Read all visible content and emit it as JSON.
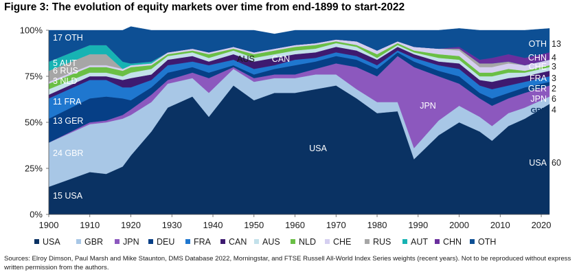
{
  "title": "Figure 3: The evolution of equity markets over time from end-1899 to start-2022",
  "source": "Sources: Elroy Dimson, Paul Marsh and Mike Staunton, DMS Database 2022, Morningstar, and FTSE Russell All-World Index Series weights (recent years). Not to be reproduced without express written permission from the authors.",
  "chart_data": {
    "type": "area",
    "stacked": true,
    "title": "Figure 3: The evolution of equity markets over time from end-1899 to start-2022",
    "xlabel": "",
    "ylabel": "",
    "xlim": [
      1900,
      2022
    ],
    "ylim": [
      0,
      100
    ],
    "x_ticks": [
      1900,
      1910,
      1920,
      1930,
      1940,
      1950,
      1960,
      1970,
      1980,
      1990,
      2000,
      2010,
      2020
    ],
    "y_ticks": [
      0,
      25,
      50,
      75,
      100
    ],
    "y_tick_labels": [
      "0%",
      "25%",
      "50%",
      "75%",
      "100%"
    ],
    "legend_position": "bottom",
    "x": [
      1900,
      1910,
      1914,
      1918,
      1920,
      1925,
      1929,
      1935,
      1939,
      1945,
      1950,
      1955,
      1960,
      1965,
      1970,
      1975,
      1980,
      1985,
      1989,
      1995,
      2000,
      2005,
      2008,
      2012,
      2016,
      2022
    ],
    "series": [
      {
        "name": "USA",
        "color": "#0a3263",
        "values": [
          15,
          23,
          22,
          26,
          32,
          45,
          58,
          64,
          53,
          70,
          62,
          66,
          66,
          68,
          70,
          63,
          55,
          56,
          30,
          43,
          50,
          45,
          40,
          48,
          52,
          60
        ]
      },
      {
        "name": "GBR",
        "color": "#a8c7e6",
        "values": [
          24,
          26,
          28,
          26,
          22,
          16,
          13,
          10,
          13,
          9,
          10,
          8,
          8,
          8,
          6,
          5,
          6,
          5,
          6,
          8,
          9,
          8,
          8,
          7,
          6,
          4
        ]
      },
      {
        "name": "JPN",
        "color": "#8c58be",
        "values": [
          0,
          1,
          1,
          2,
          3,
          4,
          2,
          3,
          8,
          1,
          2,
          2,
          2,
          3,
          6,
          12,
          14,
          25,
          44,
          24,
          12,
          10,
          11,
          8,
          8,
          6
        ]
      },
      {
        "name": "DEU",
        "color": "#063f86",
        "values": [
          13,
          13,
          13,
          9,
          5,
          4,
          4,
          3,
          3,
          1,
          2,
          3,
          5,
          4,
          4,
          4,
          4,
          2,
          3,
          3,
          4,
          3,
          4,
          3,
          3,
          2
        ]
      },
      {
        "name": "FRA",
        "color": "#1f77cf",
        "values": [
          11,
          10,
          9,
          6,
          7,
          4,
          4,
          3,
          4,
          3,
          3,
          2,
          3,
          2,
          2,
          2,
          2,
          1,
          2,
          3,
          4,
          4,
          5,
          4,
          3,
          3
        ]
      },
      {
        "name": "CAN",
        "color": "#3e1a70",
        "values": [
          2,
          2,
          2,
          4,
          5,
          3,
          3,
          3,
          2,
          3,
          4,
          4,
          3,
          3,
          3,
          3,
          3,
          2,
          2,
          2,
          3,
          3,
          4,
          4,
          3,
          3
        ]
      },
      {
        "name": "AUS",
        "color": "#c3e1ea",
        "values": [
          3,
          2,
          2,
          2,
          3,
          3,
          2,
          2,
          2,
          2,
          2,
          2,
          2,
          2,
          2,
          2,
          1,
          1,
          1,
          2,
          2,
          2,
          3,
          3,
          2,
          2
        ]
      },
      {
        "name": "NLD",
        "color": "#6abf45",
        "values": [
          3,
          3,
          3,
          3,
          3,
          2,
          1,
          1,
          2,
          1,
          2,
          2,
          2,
          2,
          1,
          1,
          2,
          1,
          1,
          2,
          2,
          2,
          2,
          2,
          1,
          1
        ]
      },
      {
        "name": "CHE",
        "color": "#d5cff0",
        "values": [
          1,
          1,
          1,
          1,
          1,
          1,
          1,
          1,
          1,
          1,
          1,
          1,
          1,
          1,
          1,
          2,
          2,
          1,
          2,
          3,
          3,
          3,
          3,
          3,
          3,
          3
        ]
      },
      {
        "name": "RUS",
        "color": "#a6a6a6",
        "values": [
          6,
          6,
          6,
          0,
          0,
          0,
          0,
          0,
          0,
          0,
          0,
          0,
          0,
          0,
          0,
          0,
          0,
          0,
          0,
          0,
          1,
          2,
          2,
          1,
          0,
          0
        ]
      },
      {
        "name": "AUT",
        "color": "#17b3b3",
        "values": [
          5,
          5,
          5,
          4,
          1,
          1,
          0,
          0,
          0,
          0,
          0,
          0,
          0,
          0,
          0,
          0,
          0,
          0,
          0,
          0,
          0,
          0,
          0,
          0,
          0,
          0
        ]
      },
      {
        "name": "CHN",
        "color": "#6a2f9d",
        "values": [
          0,
          0,
          0,
          0,
          0,
          0,
          0,
          0,
          0,
          0,
          0,
          0,
          0,
          0,
          0,
          0,
          0,
          0,
          0,
          0,
          1,
          2,
          3,
          4,
          4,
          4
        ]
      },
      {
        "name": "OTH",
        "color": "#0d4f94",
        "values": [
          17,
          8,
          8,
          17,
          20,
          17,
          12,
          10,
          12,
          9,
          12,
          8,
          8,
          7,
          5,
          6,
          11,
          6,
          9,
          10,
          10,
          16,
          15,
          13,
          15,
          13
        ]
      }
    ],
    "start_labels": [
      {
        "value": "15",
        "name": "USA"
      },
      {
        "value": "24",
        "name": "GBR"
      },
      {
        "value": "13",
        "name": "GER"
      },
      {
        "value": "11",
        "name": "FRA"
      },
      {
        "value": "3",
        "name": "NLD"
      },
      {
        "value": "6",
        "name": "RUS"
      },
      {
        "value": "5",
        "name": "AUT"
      },
      {
        "value": "17",
        "name": "OTH"
      }
    ],
    "end_labels": [
      {
        "name": "USA",
        "value": "60"
      },
      {
        "name": "GBR",
        "value": "4"
      },
      {
        "name": "JPN",
        "value": "6"
      },
      {
        "name": "GER",
        "value": "2"
      },
      {
        "name": "FRA",
        "value": "3"
      },
      {
        "name": "CHE",
        "value": "3"
      },
      {
        "name": "CHN",
        "value": "4"
      },
      {
        "name": "OTH",
        "value": "13"
      }
    ],
    "inline_labels": [
      "USA",
      "JPN",
      "AUS",
      "CAN"
    ]
  }
}
